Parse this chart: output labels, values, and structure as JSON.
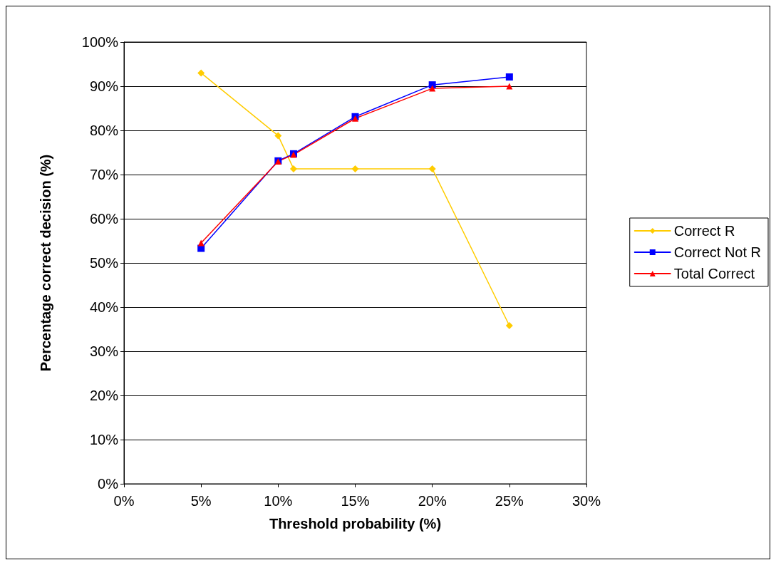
{
  "chart_data": {
    "type": "line",
    "xlabel": "Threshold probability (%)",
    "ylabel": "Percentage correct decision (%)",
    "x": [
      5,
      10,
      11,
      15,
      20,
      25
    ],
    "series": [
      {
        "name": "Correct R",
        "color": "#ffcc00",
        "marker": "diamond",
        "values": [
          93,
          78.8,
          71.3,
          71.3,
          71.3,
          35.8
        ]
      },
      {
        "name": "Correct Not R",
        "color": "#0000ff",
        "marker": "square",
        "values": [
          53.3,
          73.1,
          74.7,
          83.1,
          90.3,
          92.1
        ]
      },
      {
        "name": "Total Correct",
        "color": "#ff0000",
        "marker": "triangle",
        "values": [
          54.5,
          73,
          74.5,
          82.7,
          89.5,
          90
        ]
      }
    ],
    "xlim": [
      0,
      30
    ],
    "xticks": [
      {
        "value": 0,
        "label": "0%"
      },
      {
        "value": 5,
        "label": "5%"
      },
      {
        "value": 10,
        "label": "10%"
      },
      {
        "value": 15,
        "label": "15%"
      },
      {
        "value": 20,
        "label": "20%"
      },
      {
        "value": 25,
        "label": "25%"
      },
      {
        "value": 30,
        "label": "30%"
      }
    ],
    "ylim": [
      0,
      100
    ],
    "yticks": [
      {
        "value": 0,
        "label": "0%"
      },
      {
        "value": 10,
        "label": "10%"
      },
      {
        "value": 20,
        "label": "20%"
      },
      {
        "value": 30,
        "label": "30%"
      },
      {
        "value": 40,
        "label": "40%"
      },
      {
        "value": 50,
        "label": "50%"
      },
      {
        "value": 60,
        "label": "60%"
      },
      {
        "value": 70,
        "label": "70%"
      },
      {
        "value": 80,
        "label": "80%"
      },
      {
        "value": 90,
        "label": "90%"
      },
      {
        "value": 100,
        "label": "100%"
      }
    ],
    "grid": "y",
    "legend": "right",
    "line_style": "solid"
  }
}
